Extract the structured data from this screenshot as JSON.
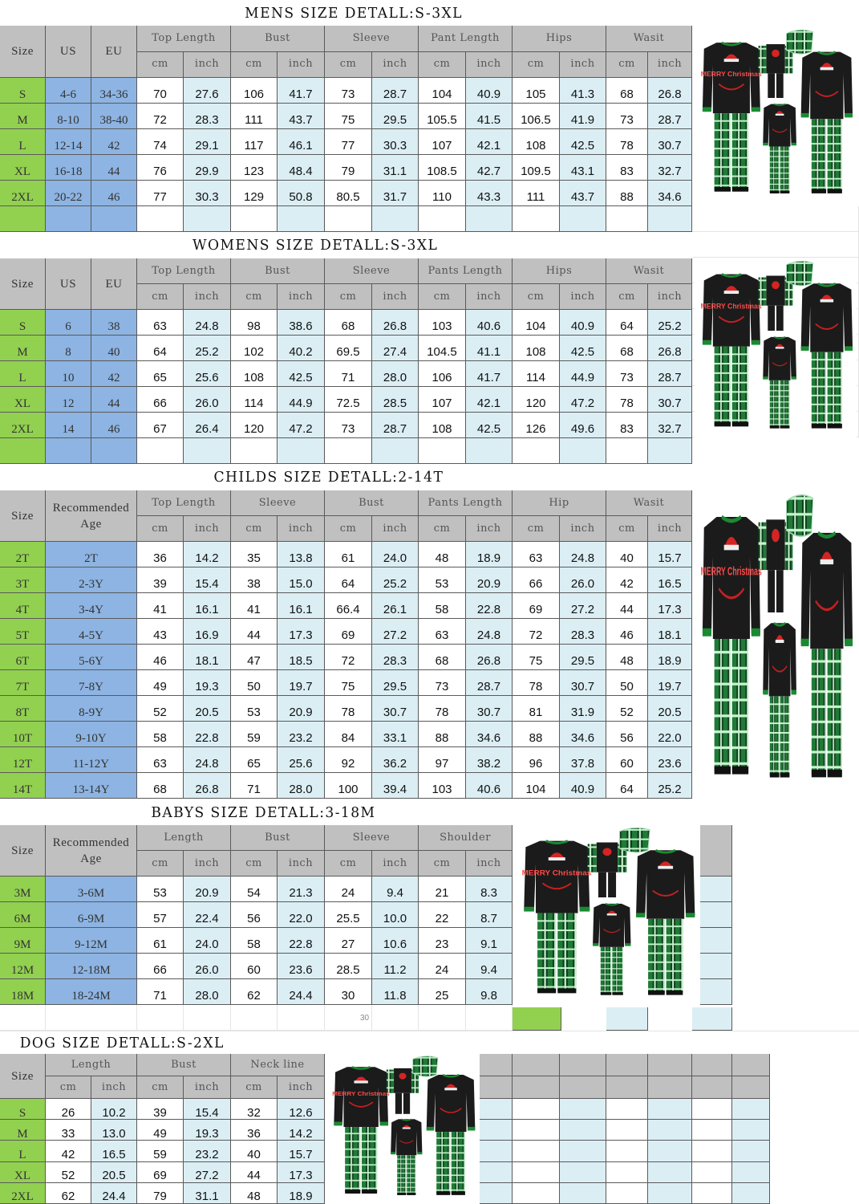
{
  "colors": {
    "header": "#c0c0c0",
    "size_column": "#92d050",
    "us_eu_column": "#8db4e2",
    "inch_column": "#dbeef4",
    "cm_column": "#ffffff"
  },
  "mens": {
    "title": "MENS  SIZE  DETALL:S-3XL",
    "lead_headers": [
      "Size",
      "US",
      "EU"
    ],
    "groups": [
      "Top Length",
      "Bust",
      "Sleeve",
      "Pant Length",
      "Hips",
      "Wasit"
    ],
    "units": [
      "cm",
      "inch"
    ],
    "rows": [
      [
        "S",
        "4-6",
        "34-36",
        "70",
        "27.6",
        "106",
        "41.7",
        "73",
        "28.7",
        "104",
        "40.9",
        "105",
        "41.3",
        "68",
        "26.8"
      ],
      [
        "M",
        "8-10",
        "38-40",
        "72",
        "28.3",
        "111",
        "43.7",
        "75",
        "29.5",
        "105.5",
        "41.5",
        "106.5",
        "41.9",
        "73",
        "28.7"
      ],
      [
        "L",
        "12-14",
        "42",
        "74",
        "29.1",
        "117",
        "46.1",
        "77",
        "30.3",
        "107",
        "42.1",
        "108",
        "42.5",
        "78",
        "30.7"
      ],
      [
        "XL",
        "16-18",
        "44",
        "76",
        "29.9",
        "123",
        "48.4",
        "79",
        "31.1",
        "108.5",
        "42.7",
        "109.5",
        "43.1",
        "83",
        "32.7"
      ],
      [
        "2XL",
        "20-22",
        "46",
        "77",
        "30.3",
        "129",
        "50.8",
        "80.5",
        "31.7",
        "110",
        "43.3",
        "111",
        "43.7",
        "88",
        "34.6"
      ]
    ]
  },
  "womens": {
    "title": "WOMENS  SIZE  DETALL:S-3XL",
    "lead_headers": [
      "Size",
      "US",
      "EU"
    ],
    "groups": [
      "Top Length",
      "Bust",
      "Sleeve",
      "Pants Length",
      "Hips",
      "Wasit"
    ],
    "units": [
      "cm",
      "inch"
    ],
    "rows": [
      [
        "S",
        "6",
        "38",
        "63",
        "24.8",
        "98",
        "38.6",
        "68",
        "26.8",
        "103",
        "40.6",
        "104",
        "40.9",
        "64",
        "25.2"
      ],
      [
        "M",
        "8",
        "40",
        "64",
        "25.2",
        "102",
        "40.2",
        "69.5",
        "27.4",
        "104.5",
        "41.1",
        "108",
        "42.5",
        "68",
        "26.8"
      ],
      [
        "L",
        "10",
        "42",
        "65",
        "25.6",
        "108",
        "42.5",
        "71",
        "28.0",
        "106",
        "41.7",
        "114",
        "44.9",
        "73",
        "28.7"
      ],
      [
        "XL",
        "12",
        "44",
        "66",
        "26.0",
        "114",
        "44.9",
        "72.5",
        "28.5",
        "107",
        "42.1",
        "120",
        "47.2",
        "78",
        "30.7"
      ],
      [
        "2XL",
        "14",
        "46",
        "67",
        "26.4",
        "120",
        "47.2",
        "73",
        "28.7",
        "108",
        "42.5",
        "126",
        "49.6",
        "83",
        "32.7"
      ]
    ]
  },
  "childs": {
    "title": "CHILDS  SIZE  DETALL:2-14T",
    "lead_headers": [
      "Size",
      "Recommended\nAge"
    ],
    "groups": [
      "Top Length",
      "Sleeve",
      "Bust",
      "Pants Length",
      "Hip",
      "Wasit"
    ],
    "units": [
      "cm",
      "inch"
    ],
    "rows": [
      [
        "2T",
        "2T",
        "36",
        "14.2",
        "35",
        "13.8",
        "61",
        "24.0",
        "48",
        "18.9",
        "63",
        "24.8",
        "40",
        "15.7"
      ],
      [
        "3T",
        "2-3Y",
        "39",
        "15.4",
        "38",
        "15.0",
        "64",
        "25.2",
        "53",
        "20.9",
        "66",
        "26.0",
        "42",
        "16.5"
      ],
      [
        "4T",
        "3-4Y",
        "41",
        "16.1",
        "41",
        "16.1",
        "66.4",
        "26.1",
        "58",
        "22.8",
        "69",
        "27.2",
        "44",
        "17.3"
      ],
      [
        "5T",
        "4-5Y",
        "43",
        "16.9",
        "44",
        "17.3",
        "69",
        "27.2",
        "63",
        "24.8",
        "72",
        "28.3",
        "46",
        "18.1"
      ],
      [
        "6T",
        "5-6Y",
        "46",
        "18.1",
        "47",
        "18.5",
        "72",
        "28.3",
        "68",
        "26.8",
        "75",
        "29.5",
        "48",
        "18.9"
      ],
      [
        "7T",
        "7-8Y",
        "49",
        "19.3",
        "50",
        "19.7",
        "75",
        "29.5",
        "73",
        "28.7",
        "78",
        "30.7",
        "50",
        "19.7"
      ],
      [
        "8T",
        "8-9Y",
        "52",
        "20.5",
        "53",
        "20.9",
        "78",
        "30.7",
        "78",
        "30.7",
        "81",
        "31.9",
        "52",
        "20.5"
      ],
      [
        "10T",
        "9-10Y",
        "58",
        "22.8",
        "59",
        "23.2",
        "84",
        "33.1",
        "88",
        "34.6",
        "88",
        "34.6",
        "56",
        "22.0"
      ],
      [
        "12T",
        "11-12Y",
        "63",
        "24.8",
        "65",
        "25.6",
        "92",
        "36.2",
        "97",
        "38.2",
        "96",
        "37.8",
        "60",
        "23.6"
      ],
      [
        "14T",
        "13-14Y",
        "68",
        "26.8",
        "71",
        "28.0",
        "100",
        "39.4",
        "103",
        "40.6",
        "104",
        "40.9",
        "64",
        "25.2"
      ]
    ]
  },
  "babys": {
    "title": "BABYS  SIZE  DETALL:3-18M",
    "lead_headers": [
      "Size",
      "Recommended\nAge"
    ],
    "groups": [
      "Length",
      "Bust",
      "Sleeve",
      "Shoulder"
    ],
    "units": [
      "cm",
      "inch"
    ],
    "rows": [
      [
        "3M",
        "3-6M",
        "53",
        "20.9",
        "54",
        "21.3",
        "24",
        "9.4",
        "21",
        "8.3"
      ],
      [
        "6M",
        "6-9M",
        "57",
        "22.4",
        "56",
        "22.0",
        "25.5",
        "10.0",
        "22",
        "8.7"
      ],
      [
        "9M",
        "9-12M",
        "61",
        "24.0",
        "58",
        "22.8",
        "27",
        "10.6",
        "23",
        "9.1"
      ],
      [
        "12M",
        "12-18M",
        "66",
        "26.0",
        "60",
        "23.6",
        "28.5",
        "11.2",
        "24",
        "9.4"
      ],
      [
        "18M",
        "18-24M",
        "71",
        "28.0",
        "62",
        "24.4",
        "30",
        "11.8",
        "25",
        "9.8"
      ]
    ],
    "page_number": "30"
  },
  "dog": {
    "title": "DOG  SIZE  DETALL:S-2XL",
    "lead_headers": [
      "Size"
    ],
    "groups": [
      "Length",
      "Bust",
      "Neck line"
    ],
    "units": [
      "cm",
      "inch"
    ],
    "rows": [
      [
        "S",
        "26",
        "10.2",
        "39",
        "15.4",
        "32",
        "12.6"
      ],
      [
        "M",
        "33",
        "13.0",
        "49",
        "19.3",
        "36",
        "14.2"
      ],
      [
        "L",
        "42",
        "16.5",
        "59",
        "23.2",
        "40",
        "15.7"
      ],
      [
        "XL",
        "52",
        "20.5",
        "69",
        "27.2",
        "44",
        "17.3"
      ],
      [
        "2XL",
        "62",
        "24.4",
        "79",
        "31.1",
        "48",
        "18.9"
      ]
    ]
  },
  "product_image": {
    "icon": "family-christmas-pajamas-image",
    "shirt_print": "MERRY Christmas"
  }
}
